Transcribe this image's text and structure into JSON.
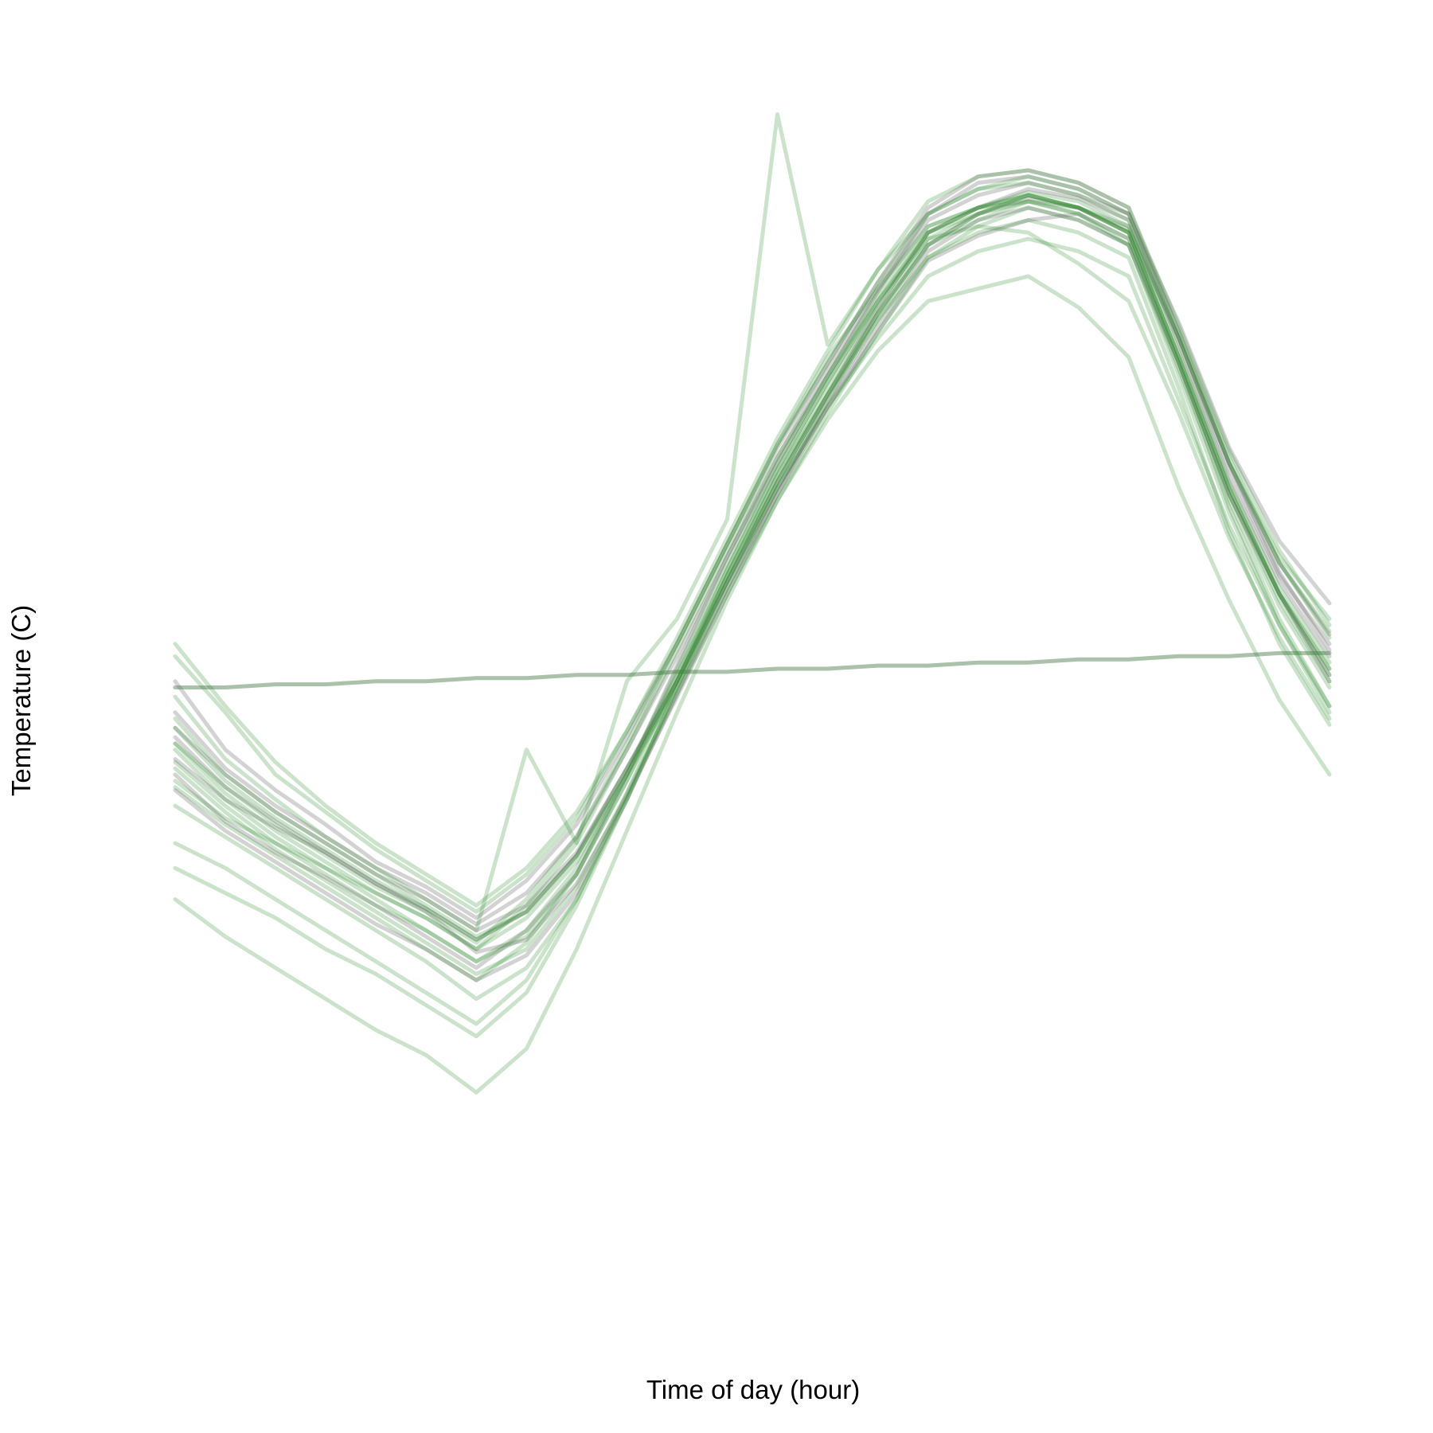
{
  "chart_data": {
    "type": "line",
    "title": "",
    "xlabel": "Time of day (hour)",
    "ylabel": "Temperature (C)",
    "xlim": [
      0,
      23
    ],
    "ylim": [
      -2.2,
      1.25
    ],
    "x_axis_ticks_shown": false,
    "y_axis_ticks_shown": false,
    "grid": false,
    "legend": "none",
    "colors": {
      "green": "#2e8b2e",
      "grey": "#6e6e6e",
      "green_opacity": 0.25,
      "grey_opacity": 0.3
    },
    "x": [
      0,
      1,
      2,
      3,
      4,
      5,
      6,
      7,
      8,
      9,
      10,
      11,
      12,
      13,
      14,
      15,
      16,
      17,
      18,
      19,
      20,
      21,
      22,
      23
    ],
    "series": [
      {
        "color": "grey",
        "values": [
          -0.65,
          -0.78,
          -0.87,
          -0.95,
          -1.05,
          -1.14,
          -1.27,
          -1.23,
          -1.05,
          -0.77,
          -0.45,
          -0.12,
          0.2,
          0.5,
          0.78,
          1.0,
          1.1,
          1.15,
          1.12,
          1.05,
          0.7,
          0.3,
          -0.02,
          -0.25
        ]
      },
      {
        "color": "grey",
        "values": [
          -0.55,
          -0.7,
          -0.82,
          -0.92,
          -1.02,
          -1.1,
          -1.2,
          -1.12,
          -0.95,
          -0.68,
          -0.4,
          -0.08,
          0.22,
          0.48,
          0.72,
          0.95,
          1.03,
          1.08,
          1.1,
          1.02,
          0.62,
          0.2,
          -0.12,
          -0.38
        ]
      },
      {
        "color": "grey",
        "values": [
          -0.7,
          -0.85,
          -0.95,
          -1.03,
          -1.12,
          -1.22,
          -1.32,
          -1.2,
          -1.02,
          -0.7,
          -0.35,
          0.0,
          0.3,
          0.58,
          0.85,
          1.1,
          1.2,
          1.22,
          1.18,
          1.1,
          0.75,
          0.35,
          0.05,
          -0.15
        ]
      },
      {
        "color": "grey",
        "values": [
          -0.4,
          -0.62,
          -0.75,
          -0.86,
          -0.98,
          -1.06,
          -1.16,
          -1.04,
          -0.86,
          -0.58,
          -0.28,
          0.04,
          0.35,
          0.62,
          0.88,
          1.12,
          1.22,
          1.24,
          1.2,
          1.12,
          0.72,
          0.3,
          -0.05,
          -0.3
        ]
      },
      {
        "color": "grey",
        "values": [
          -0.58,
          -0.74,
          -0.85,
          -0.95,
          -1.05,
          -1.13,
          -1.23,
          -1.14,
          -0.96,
          -0.68,
          -0.4,
          -0.08,
          0.24,
          0.52,
          0.8,
          1.04,
          1.12,
          1.18,
          1.15,
          1.08,
          0.68,
          0.25,
          -0.08,
          -0.32
        ]
      },
      {
        "color": "grey",
        "values": [
          -0.75,
          -0.88,
          -0.98,
          -1.08,
          -1.18,
          -1.26,
          -1.36,
          -1.28,
          -1.08,
          -0.78,
          -0.44,
          -0.1,
          0.2,
          0.48,
          0.74,
          0.98,
          1.08,
          1.12,
          1.08,
          1.0,
          0.62,
          0.2,
          -0.12,
          -0.4
        ]
      },
      {
        "color": "grey",
        "values": [
          -0.5,
          -0.68,
          -0.8,
          -0.9,
          -1.0,
          -1.08,
          -1.18,
          -1.08,
          -0.9,
          -0.62,
          -0.32,
          0.0,
          0.32,
          0.6,
          0.86,
          1.08,
          1.16,
          1.2,
          1.16,
          1.1,
          0.7,
          0.28,
          -0.06,
          -0.28
        ]
      },
      {
        "color": "grey",
        "values": [
          -0.42,
          -0.42,
          -0.41,
          -0.41,
          -0.4,
          -0.4,
          -0.39,
          -0.39,
          -0.38,
          -0.38,
          -0.37,
          -0.37,
          -0.36,
          -0.36,
          -0.35,
          -0.35,
          -0.34,
          -0.34,
          -0.33,
          -0.33,
          -0.32,
          -0.32,
          -0.31,
          -0.31
        ]
      },
      {
        "color": "green",
        "values": [
          -0.55,
          -0.72,
          -0.84,
          -0.94,
          -1.04,
          -1.13,
          -1.23,
          -1.14,
          -0.96,
          -0.68,
          -0.38,
          -0.06,
          0.26,
          0.54,
          0.8,
          1.04,
          1.12,
          1.17,
          1.14,
          1.06,
          0.66,
          0.24,
          -0.1,
          -0.34
        ]
      },
      {
        "color": "green",
        "values": [
          -0.62,
          -0.78,
          -0.9,
          -1.0,
          -1.1,
          -1.2,
          -1.3,
          -1.22,
          -1.02,
          -0.72,
          -0.4,
          -0.06,
          0.24,
          0.52,
          0.78,
          1.0,
          1.1,
          1.16,
          1.12,
          1.04,
          0.64,
          0.22,
          -0.12,
          -0.38
        ]
      },
      {
        "color": "green",
        "values": [
          -0.68,
          -0.82,
          -0.94,
          -1.04,
          -1.14,
          -1.24,
          -1.34,
          -1.26,
          -1.06,
          -0.76,
          -0.44,
          -0.12,
          0.18,
          0.46,
          0.72,
          0.96,
          1.06,
          1.12,
          1.08,
          1.0,
          0.6,
          0.18,
          -0.16,
          -0.42
        ]
      },
      {
        "color": "green",
        "values": [
          -0.32,
          -0.5,
          -0.7,
          -0.82,
          -0.94,
          -1.04,
          -1.14,
          -1.02,
          -0.84,
          -0.56,
          -0.26,
          0.06,
          0.38,
          0.66,
          0.92,
          1.14,
          1.22,
          1.24,
          1.2,
          1.12,
          0.74,
          0.34,
          0.02,
          -0.22
        ]
      },
      {
        "color": "green",
        "values": [
          -0.6,
          -0.76,
          -0.88,
          -0.98,
          -1.08,
          -1.16,
          -1.26,
          -1.16,
          -0.98,
          -0.7,
          -0.4,
          -0.08,
          0.24,
          0.52,
          0.78,
          1.02,
          1.1,
          1.16,
          1.12,
          1.04,
          0.64,
          0.22,
          -0.12,
          -0.36
        ]
      },
      {
        "color": "green",
        "values": [
          -1.0,
          -1.08,
          -1.16,
          -1.26,
          -1.34,
          -1.44,
          -1.54,
          -1.4,
          -1.12,
          -0.78,
          -0.42,
          -0.06,
          0.26,
          0.52,
          0.76,
          0.96,
          1.04,
          1.08,
          1.04,
          0.96,
          0.54,
          0.08,
          -0.28,
          -0.54
        ]
      },
      {
        "color": "green",
        "values": [
          -0.92,
          -1.0,
          -1.1,
          -1.2,
          -1.3,
          -1.4,
          -1.5,
          -1.36,
          -1.1,
          -0.76,
          -0.4,
          -0.04,
          0.28,
          0.56,
          0.82,
          1.04,
          1.12,
          1.16,
          1.12,
          1.04,
          0.62,
          0.16,
          -0.2,
          -0.48
        ]
      },
      {
        "color": "green",
        "values": [
          -1.1,
          -1.22,
          -1.32,
          -1.42,
          -1.52,
          -1.6,
          -1.72,
          -1.58,
          -1.26,
          -0.88,
          -0.5,
          -0.14,
          0.18,
          0.44,
          0.66,
          0.82,
          0.86,
          0.9,
          0.8,
          0.64,
          0.22,
          -0.14,
          -0.46,
          -0.7
        ]
      },
      {
        "color": "green",
        "values": [
          -0.8,
          -0.9,
          -1.0,
          -1.1,
          -1.2,
          -1.3,
          -1.42,
          -1.32,
          -1.1,
          -0.78,
          -0.42,
          -0.08,
          0.22,
          0.48,
          0.7,
          0.9,
          0.98,
          1.02,
          0.98,
          0.9,
          0.5,
          0.1,
          -0.22,
          -0.48
        ]
      },
      {
        "color": "green",
        "values": [
          -0.45,
          -0.65,
          -0.78,
          -0.9,
          -1.0,
          -1.1,
          -1.2,
          -0.62,
          -0.92,
          -0.4,
          -0.2,
          0.12,
          1.42,
          0.68,
          0.92,
          1.1,
          1.18,
          1.22,
          1.18,
          1.1,
          0.72,
          0.32,
          -0.02,
          -0.26
        ]
      },
      {
        "color": "green",
        "values": [
          -0.72,
          -0.84,
          -0.92,
          -1.0,
          -1.08,
          -1.16,
          -1.26,
          -1.12,
          -0.92,
          -0.62,
          -0.3,
          0.02,
          0.32,
          0.58,
          0.82,
          1.02,
          1.06,
          1.04,
          0.94,
          0.82,
          0.46,
          0.06,
          -0.26,
          -0.52
        ]
      },
      {
        "color": "green",
        "values": [
          -0.52,
          -0.7,
          -0.82,
          -0.92,
          -1.02,
          -1.12,
          -1.22,
          -1.14,
          -0.96,
          -0.7,
          -0.42,
          -0.1,
          0.22,
          0.5,
          0.76,
          1.0,
          1.08,
          1.14,
          1.12,
          1.06,
          0.7,
          0.3,
          0.0,
          -0.2
        ]
      },
      {
        "color": "green",
        "values": [
          -0.6,
          -0.74,
          -0.86,
          -0.96,
          -1.06,
          -1.14,
          -1.24,
          -1.1,
          -0.9,
          -0.6,
          -0.28,
          0.04,
          0.36,
          0.64,
          0.86,
          1.06,
          1.12,
          1.14,
          1.1,
          1.02,
          0.62,
          0.2,
          -0.14,
          -0.4
        ]
      },
      {
        "color": "green",
        "values": [
          -0.66,
          -0.8,
          -0.92,
          -1.02,
          -1.12,
          -1.2,
          -1.3,
          -1.2,
          -1.0,
          -0.7,
          -0.36,
          -0.02,
          0.3,
          0.58,
          0.84,
          1.06,
          1.12,
          1.16,
          1.12,
          1.04,
          0.64,
          0.22,
          -0.12,
          -0.36
        ]
      },
      {
        "color": "green",
        "values": [
          -0.42,
          -0.42,
          -0.41,
          -0.41,
          -0.4,
          -0.4,
          -0.39,
          -0.39,
          -0.38,
          -0.38,
          -0.37,
          -0.37,
          -0.36,
          -0.36,
          -0.35,
          -0.35,
          -0.34,
          -0.34,
          -0.33,
          -0.33,
          -0.32,
          -0.32,
          -0.31,
          -0.31
        ]
      },
      {
        "color": "green",
        "values": [
          -0.28,
          -0.48,
          -0.66,
          -0.8,
          -0.92,
          -1.02,
          -1.12,
          -1.0,
          -0.82,
          -0.56,
          -0.28,
          0.04,
          0.36,
          0.62,
          0.88,
          1.1,
          1.18,
          1.2,
          1.16,
          1.08,
          0.7,
          0.3,
          -0.02,
          -0.24
        ]
      },
      {
        "color": "green",
        "values": [
          -0.74,
          -0.86,
          -0.96,
          -1.06,
          -1.16,
          -1.26,
          -1.36,
          -1.24,
          -1.02,
          -0.72,
          -0.38,
          -0.04,
          0.28,
          0.56,
          0.82,
          1.04,
          1.1,
          1.14,
          1.1,
          1.0,
          0.58,
          0.14,
          -0.22,
          -0.5
        ]
      }
    ]
  }
}
